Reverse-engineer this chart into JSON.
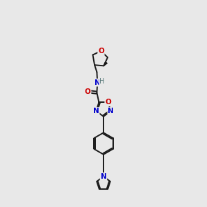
{
  "background_color": "#e8e8e8",
  "bond_color": "#1a1a1a",
  "atom_colors": {
    "N": "#0000cc",
    "O": "#cc0000",
    "H": "#557777"
  },
  "figsize": [
    3.0,
    3.0
  ],
  "dpi": 100
}
